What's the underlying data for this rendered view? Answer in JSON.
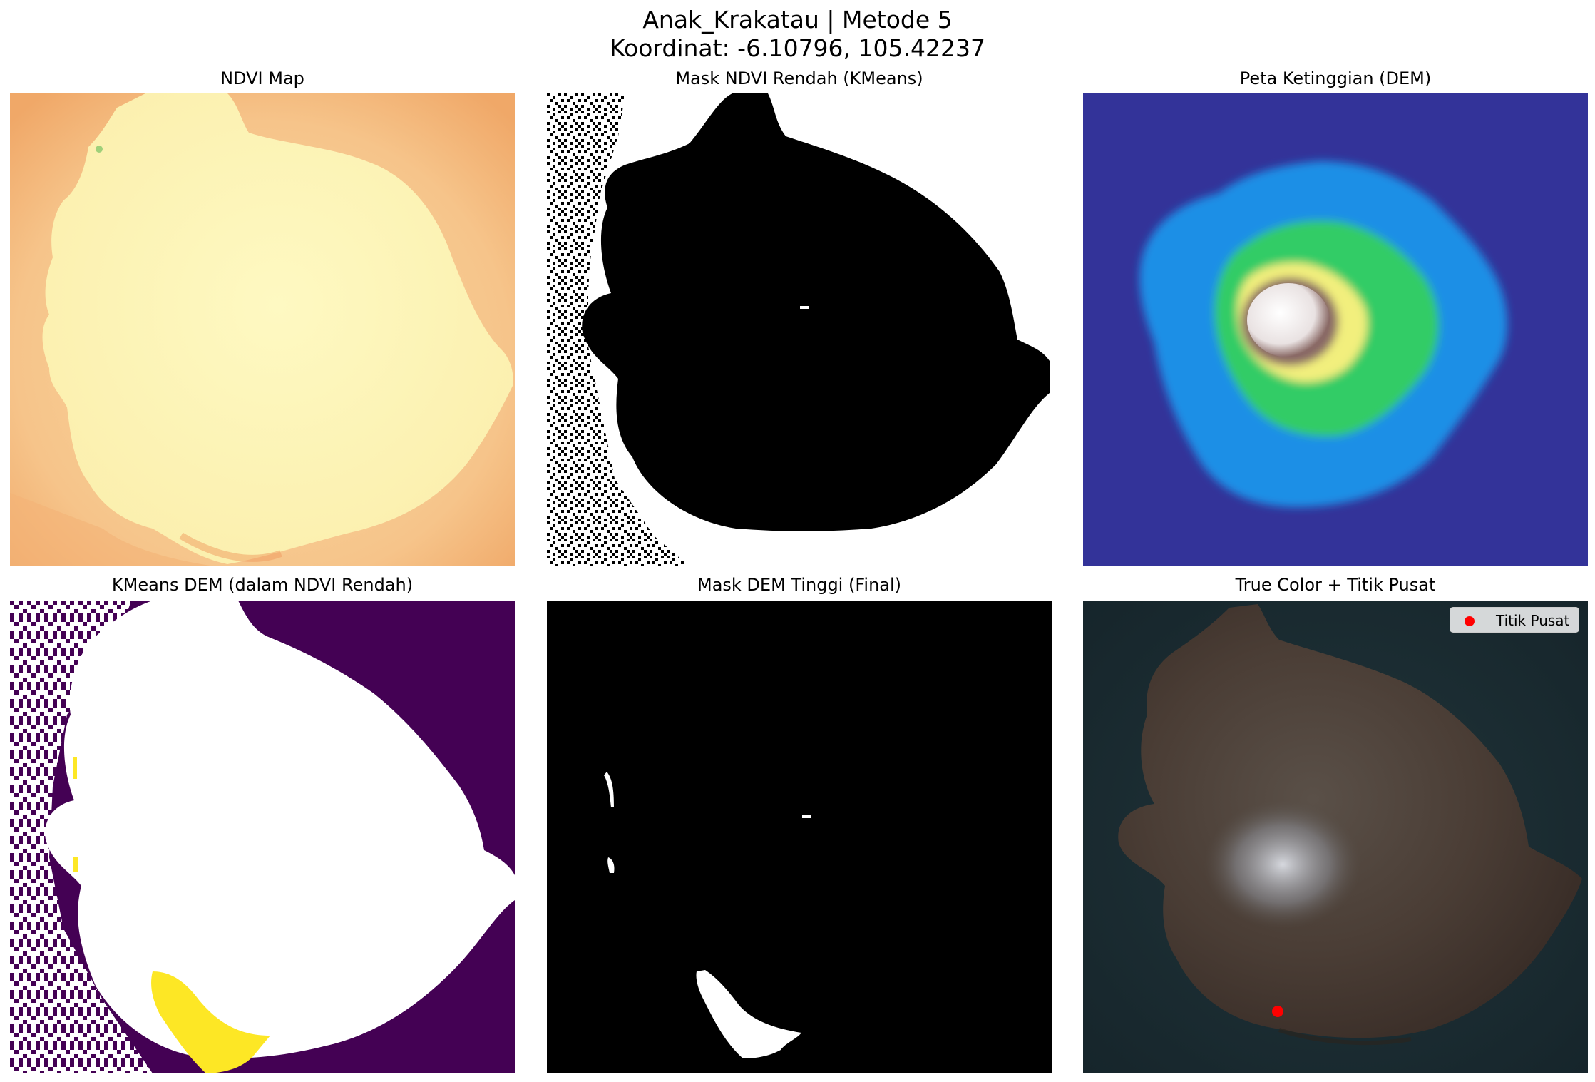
{
  "figure": {
    "title_line1": "Anak_Krakatau | Metode 5",
    "title_line2": "Koordinat: -6.10796, 105.42237"
  },
  "panels": [
    {
      "title": "NDVI Map",
      "colormap": "RdYlGn",
      "colors": {
        "background": "#f6c48a",
        "island": "#fdf7b8"
      }
    },
    {
      "title": "Mask NDVI Rendah (KMeans)",
      "colors": {
        "mask": "#000000",
        "background": "#ffffff"
      }
    },
    {
      "title": "Peta Ketinggian (DEM)",
      "colormap": "terrain",
      "colors": {
        "sea": "#333399",
        "low": "#1f8fe6",
        "mid": "#33cc66",
        "high": "#f2ef7d",
        "peak": "#f3eeee"
      }
    },
    {
      "title": "KMeans DEM (dalam NDVI Rendah)",
      "colormap": "viridis",
      "colors": {
        "cluster_0": "#440154",
        "cluster_1": "#fde725",
        "masked": "#ffffff"
      }
    },
    {
      "title": "Mask DEM Tinggi (Final)",
      "colors": {
        "background": "#000000",
        "mask": "#ffffff"
      }
    },
    {
      "title": "True Color + Titik Pusat",
      "colors": {
        "sea": "#1a2b30",
        "island": "#463a33",
        "point": "#ff0000"
      },
      "legend": "Titik Pusat"
    }
  ]
}
